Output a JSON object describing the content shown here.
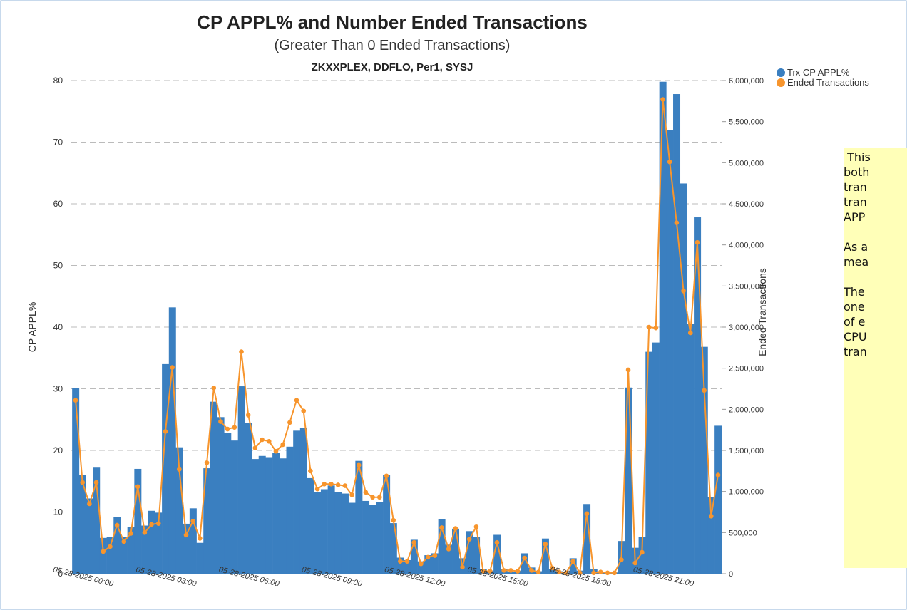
{
  "chart_data": {
    "type": "bar_line",
    "title": "CP APPL% and Number Ended Transactions",
    "subtitle": "(Greater Than 0 Ended Transactions)",
    "subtitle2": "ZKXXPLEX, DDFLO, Per1, SYSJ",
    "y_label": "CP APPL%",
    "y2_label": "Ended Transactions",
    "categories": [
      "05-28-2025 00:00",
      null,
      null,
      null,
      null,
      null,
      null,
      null,
      null,
      null,
      null,
      null,
      "05-28-2025 03:00",
      null,
      null,
      null,
      null,
      null,
      null,
      null,
      null,
      null,
      null,
      null,
      "05-28-2025 06:00",
      null,
      null,
      null,
      null,
      null,
      null,
      null,
      null,
      null,
      null,
      null,
      "05-28-2025 09:00",
      null,
      null,
      null,
      null,
      null,
      null,
      null,
      null,
      null,
      null,
      null,
      "05-28-2025 12:00",
      null,
      null,
      null,
      null,
      null,
      null,
      null,
      null,
      null,
      null,
      null,
      "05-28-2025 15:00",
      null,
      null,
      null,
      null,
      null,
      null,
      null,
      null,
      null,
      null,
      null,
      "05-28-2025 18:00",
      null,
      null,
      null,
      null,
      null,
      null,
      null,
      null,
      null,
      null,
      null,
      "05-28-2025 21:00",
      null,
      null,
      null,
      null,
      null,
      null,
      null,
      null,
      null
    ],
    "series": [
      {
        "name": "Trx CP APPL%",
        "color": "#3a7fc0",
        "kind": "bar",
        "values": [
          30.1,
          16,
          12.2,
          17.2,
          5.8,
          6,
          9.2,
          6,
          7.6,
          17,
          7.8,
          10.2,
          9.9,
          34,
          43.2,
          20.5,
          8.1,
          10.6,
          5,
          17.1,
          27.9,
          25.4,
          22.8,
          21.6,
          30.4,
          24.5,
          18.6,
          19.1,
          18.9,
          19.6,
          18.7,
          20.6,
          23.2,
          23.7,
          15.5,
          13.2,
          13.7,
          14.3,
          13.2,
          13,
          11.5,
          18.3,
          11.8,
          11.2,
          11.6,
          16,
          8.2,
          2.6,
          2.2,
          5.5,
          2,
          3,
          3.3,
          8.9,
          4.7,
          7.3,
          2.5,
          6.9,
          6,
          0.8,
          0.5,
          6.3,
          0.8,
          0.3,
          0.5,
          3.3,
          1,
          0.4,
          5.7,
          0.8,
          0.4,
          0.2,
          2.5,
          0.5,
          11.3,
          0.8,
          0.3,
          0.3,
          0.2,
          5.3,
          30.2,
          4.2,
          5.9,
          36,
          37.5,
          79.8,
          72,
          77.8,
          63.3,
          40.5,
          57.8,
          36.8,
          12.4,
          24
        ]
      },
      {
        "name": "Ended Transactions",
        "color": "#f7952d",
        "kind": "line",
        "axis": "y2",
        "values": [
          2110000,
          1110000,
          850000,
          1110000,
          270000,
          330000,
          590000,
          390000,
          490000,
          1060000,
          500000,
          600000,
          610000,
          1730000,
          2510000,
          1270000,
          470000,
          640000,
          430000,
          1350000,
          2260000,
          1850000,
          1760000,
          1780000,
          2700000,
          1930000,
          1530000,
          1630000,
          1610000,
          1490000,
          1570000,
          1840000,
          2110000,
          1980000,
          1250000,
          1030000,
          1090000,
          1090000,
          1080000,
          1070000,
          960000,
          1320000,
          990000,
          930000,
          930000,
          1190000,
          650000,
          150000,
          150000,
          380000,
          120000,
          200000,
          220000,
          560000,
          300000,
          550000,
          80000,
          420000,
          570000,
          30000,
          30000,
          380000,
          40000,
          40000,
          30000,
          190000,
          40000,
          20000,
          360000,
          70000,
          20000,
          10000,
          150000,
          10000,
          730000,
          10000,
          20000,
          10000,
          10000,
          170000,
          2480000,
          130000,
          260000,
          3000000,
          2990000,
          5770000,
          5010000,
          4270000,
          3440000,
          2930000,
          4030000,
          2230000,
          700000,
          1200000
        ]
      }
    ],
    "ylim": [
      0,
      80
    ],
    "yticks": [
      0,
      10,
      20,
      30,
      40,
      50,
      60,
      70,
      80
    ],
    "y2lim": [
      0,
      6000000
    ],
    "y2ticks": [
      0,
      {
        "value": 500000,
        "label": "500,000"
      },
      {
        "value": 1000000,
        "label": "1,000,000"
      },
      {
        "value": 1500000,
        "label": "1,500,000"
      },
      {
        "value": 2000000,
        "label": "2,000,000"
      },
      {
        "value": 2500000,
        "label": "2,500,000"
      },
      {
        "value": 3000000,
        "label": "3,000,000"
      },
      {
        "value": 3500000,
        "label": "3,500,000"
      },
      {
        "value": 4000000,
        "label": "4,000,000"
      },
      {
        "value": 4500000,
        "label": "4,500,000"
      },
      {
        "value": 5000000,
        "label": "5,000,000"
      },
      {
        "value": 5500000,
        "label": "5,500,000"
      },
      {
        "value": 6000000,
        "label": "6,000,000"
      }
    ],
    "grid": true,
    "legend": "top-right",
    "annotation": [
      " This",
      "both",
      "tran",
      "tran",
      "APP",
      "",
      "As a",
      "mea",
      "",
      "The",
      "one",
      "of e",
      "CPU",
      "tran"
    ]
  }
}
